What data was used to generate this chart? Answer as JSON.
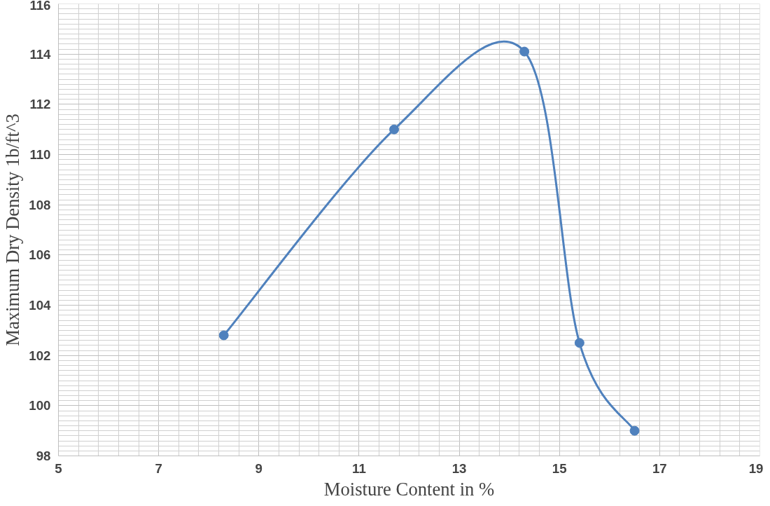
{
  "chart_data": {
    "type": "line",
    "xlabel": "Moisture Content in %",
    "ylabel": "Maximum Dry Density 1b/ft^3",
    "x": [
      8.3,
      11.7,
      14.3,
      15.4,
      16.5
    ],
    "series": [
      {
        "color": "#4f81bd",
        "values": [
          102.8,
          111.0,
          114.1,
          102.5,
          99.0
        ]
      }
    ],
    "xlim": [
      5,
      19
    ],
    "xticks": [
      5,
      7,
      9,
      11,
      13,
      15,
      17,
      19
    ],
    "ylim": [
      98,
      116
    ],
    "yticks": [
      98,
      100,
      102,
      104,
      106,
      108,
      110,
      112,
      114,
      116
    ],
    "grid": true,
    "marker": "circle",
    "line_style": "solid"
  }
}
